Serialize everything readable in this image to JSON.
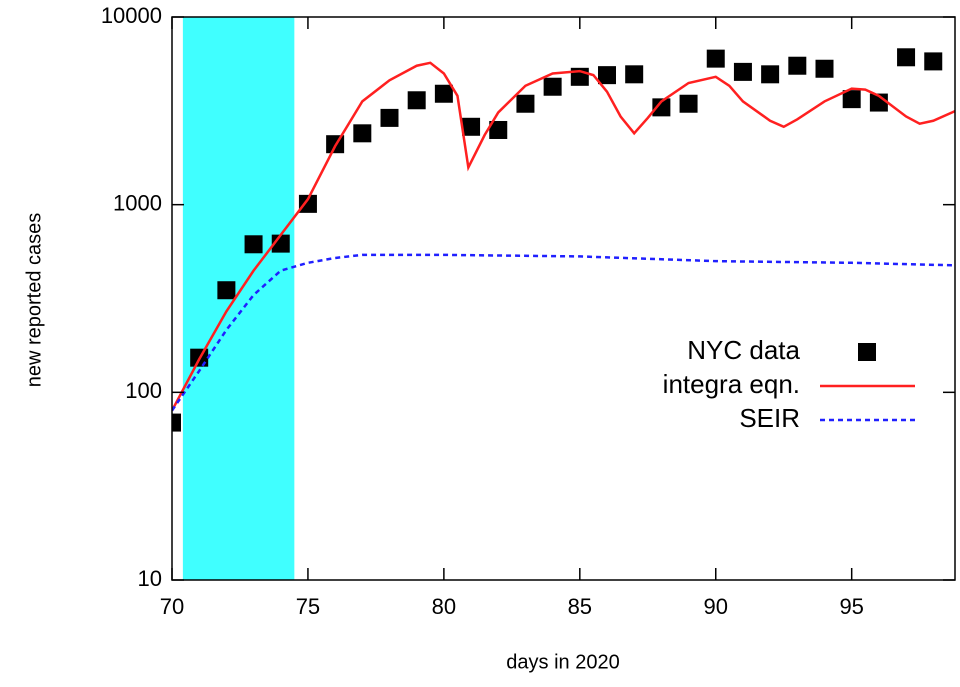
{
  "chart_data": {
    "type": "line",
    "xlabel": "days in 2020",
    "ylabel": "new reported cases",
    "xlim": [
      70,
      98.8
    ],
    "ylim": [
      10,
      10000
    ],
    "log_y": true,
    "xticks": [
      70,
      75,
      80,
      85,
      90,
      95
    ],
    "yticks": [
      10,
      100,
      1000,
      10000
    ],
    "highlight_x": [
      70.4,
      74.5
    ],
    "highlight_color": "#40ffff",
    "legend": "right",
    "series": [
      {
        "name": "NYC data",
        "color": "#000000",
        "style": "square",
        "x": [
          70,
          71,
          72,
          73,
          74,
          75,
          76,
          77,
          78,
          79,
          80,
          81,
          82,
          83,
          84,
          85,
          86,
          87,
          88,
          89,
          90,
          91,
          92,
          93,
          94,
          95,
          96,
          97,
          98
        ],
        "values": [
          69,
          153,
          350,
          615,
          620,
          1010,
          2100,
          2400,
          2900,
          3600,
          3900,
          2600,
          2500,
          3450,
          4250,
          4800,
          4900,
          4950,
          3300,
          3450,
          6000,
          5100,
          4950,
          5500,
          5300,
          3650,
          3500,
          6100,
          5800
        ]
      },
      {
        "name": "integra eqn.",
        "color": "#ff2020",
        "style": "solid",
        "x": [
          70,
          71,
          72,
          73,
          74,
          75,
          76,
          77,
          78,
          79,
          79.5,
          80,
          80.5,
          80.9,
          81.5,
          82,
          83,
          84,
          85,
          85.5,
          86,
          86.5,
          87,
          87.5,
          88,
          89,
          90,
          90.5,
          91,
          92,
          92.5,
          93,
          94,
          95,
          95.5,
          96,
          97,
          97.5,
          98,
          98.8
        ],
        "values": [
          80,
          150,
          270,
          445,
          690,
          1070,
          2050,
          3550,
          4600,
          5500,
          5700,
          5000,
          3800,
          1580,
          2350,
          3100,
          4300,
          5000,
          5150,
          4900,
          4000,
          2950,
          2400,
          2900,
          3550,
          4450,
          4800,
          4300,
          3550,
          2800,
          2600,
          2850,
          3550,
          4150,
          4100,
          3800,
          2950,
          2700,
          2800,
          3150
        ]
      },
      {
        "name": "SEIR",
        "color": "#2020ff",
        "style": "dashed",
        "x": [
          70,
          71,
          72,
          73,
          74,
          75,
          76,
          77,
          80,
          85,
          90,
          95,
          98.8
        ],
        "values": [
          80,
          130,
          215,
          330,
          445,
          490,
          520,
          540,
          540,
          530,
          500,
          490,
          475
        ]
      }
    ]
  }
}
